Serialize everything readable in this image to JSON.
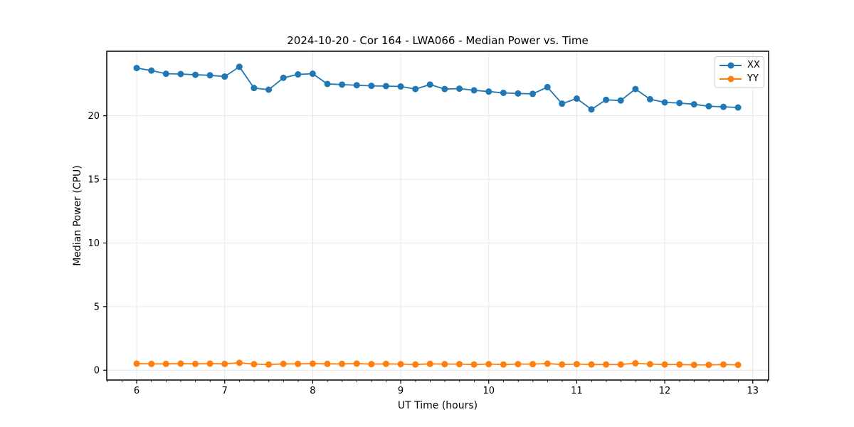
{
  "chart_data": {
    "type": "line",
    "title": "2024-10-20 - Cor 164 - LWA066 - Median Power vs. Time",
    "xlabel": "UT Time (hours)",
    "ylabel": "Median Power (CPU)",
    "axis": {
      "xlim": [
        5.66,
        13.18
      ],
      "ylim": [
        -0.77,
        25.07
      ],
      "x_ticks": [
        6,
        7,
        8,
        9,
        10,
        11,
        12,
        13
      ],
      "y_ticks": [
        0,
        5,
        10,
        15,
        20
      ],
      "x_minor_step": 0.1667,
      "grid": true,
      "grid_color": "#e6e6e6"
    },
    "legend": {
      "position": "upper-right"
    },
    "x": [
      6.0,
      6.167,
      6.333,
      6.5,
      6.667,
      6.833,
      7.0,
      7.167,
      7.333,
      7.5,
      7.667,
      7.833,
      8.0,
      8.167,
      8.333,
      8.5,
      8.667,
      8.833,
      9.0,
      9.167,
      9.333,
      9.5,
      9.667,
      9.833,
      10.0,
      10.167,
      10.333,
      10.5,
      10.667,
      10.833,
      11.0,
      11.167,
      11.333,
      11.5,
      11.667,
      11.833,
      12.0,
      12.167,
      12.333,
      12.5,
      12.667,
      12.833
    ],
    "series": [
      {
        "name": "XX",
        "color": "#1f77b4",
        "values": [
          23.75,
          23.55,
          23.3,
          23.28,
          23.22,
          23.18,
          23.08,
          23.85,
          22.18,
          22.05,
          22.98,
          23.25,
          23.3,
          22.5,
          22.45,
          22.4,
          22.35,
          22.33,
          22.3,
          22.1,
          22.45,
          22.1,
          22.13,
          22.0,
          21.9,
          21.8,
          21.75,
          21.72,
          22.25,
          20.95,
          21.35,
          20.5,
          21.25,
          21.2,
          22.1,
          21.3,
          21.05,
          21.0,
          20.9,
          20.75,
          20.7,
          20.65
        ]
      },
      {
        "name": "YY",
        "color": "#ff7f0e",
        "values": [
          0.52,
          0.5,
          0.5,
          0.52,
          0.5,
          0.52,
          0.5,
          0.58,
          0.48,
          0.45,
          0.5,
          0.5,
          0.52,
          0.5,
          0.5,
          0.52,
          0.48,
          0.5,
          0.48,
          0.45,
          0.5,
          0.48,
          0.48,
          0.45,
          0.48,
          0.45,
          0.48,
          0.48,
          0.52,
          0.45,
          0.48,
          0.45,
          0.45,
          0.45,
          0.55,
          0.48,
          0.45,
          0.45,
          0.42,
          0.42,
          0.45,
          0.42
        ]
      }
    ]
  }
}
